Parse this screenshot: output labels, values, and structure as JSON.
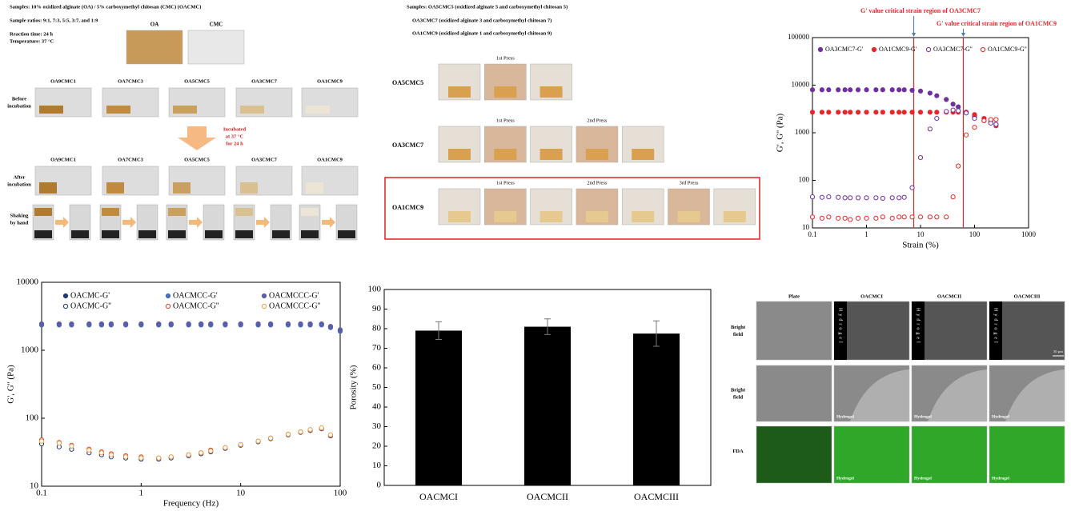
{
  "panel_a": {
    "lines": [
      "Samples: 10% oxidized alginate (OA) / 5% carboxymethyl chitosan (CMC) (OACMC)",
      "Sample ratios: 9:1, 7:3, 5:5, 3:7, and 1:9",
      "Reaction time: 24 h",
      "Temperature: 37 °C"
    ],
    "tubes": [
      "OA",
      "CMC"
    ],
    "samples": [
      "OA9CMC1",
      "OA7CMC3",
      "OA5CMC5",
      "OA3CMC7",
      "OA1CMC9"
    ],
    "samples_after": [
      "OA9CMC1",
      "OA7CMC3",
      "OA5CMC5",
      "OA3CMC7",
      "OA1CMC9"
    ],
    "row_labels": [
      [
        "Before",
        "incubation"
      ],
      [
        "After",
        "incubation"
      ],
      [
        "Shaking",
        "by hand"
      ]
    ],
    "incubation_note": [
      "Incubated",
      "at 37 °C",
      "for 24 h"
    ]
  },
  "panel_b": {
    "lines": [
      "Samples: OA5CMC5 (oxidized alginate 5 and carboxymethyl chitosan 5)",
      "OA3CMC7 (oxidized alginate 3 and carboxymethyl chitosan 7)",
      "OA1CMC9 (oxidized alginate 1 and carboxymethyl chitosan 9)"
    ],
    "rows": [
      {
        "label": "OA5CMC5",
        "presses": [
          "1st Press"
        ]
      },
      {
        "label": "OA3CMC7",
        "presses": [
          "1st Press",
          "2nd Press"
        ]
      },
      {
        "label": "OA1CMC9",
        "presses": [
          "1st Press",
          "2nd Press",
          "3rd Press"
        ]
      }
    ]
  },
  "panel_f": {
    "columns": [
      "Plate",
      "OACMCI",
      "OACMCII",
      "OACMCIII"
    ],
    "rows": [
      [
        "Bright",
        "field"
      ],
      [
        "Bright",
        "field"
      ],
      [
        "FDA"
      ]
    ],
    "hydrogel": "Hydrogel",
    "scale": "50 µm"
  },
  "chart_data": [
    {
      "type": "scatter",
      "xlabel": "Strain (%)",
      "ylabel": "G', G'' (Pa)",
      "xlog": true,
      "ylog": true,
      "xlim": [
        0.1,
        1000
      ],
      "ylim": [
        10,
        100000
      ],
      "xticks": [
        0.1,
        1,
        10,
        100,
        1000
      ],
      "yticks": [
        10,
        100,
        1000,
        10000,
        100000
      ],
      "x": [
        0.1,
        0.15,
        0.2,
        0.3,
        0.4,
        0.5,
        0.7,
        1,
        1.5,
        2,
        3,
        4,
        5,
        7,
        10,
        15,
        20,
        30,
        40,
        50,
        70,
        100,
        150,
        200,
        250
      ],
      "series": [
        {
          "name": "OA3CMC7-G'",
          "color": "#7030a0",
          "filled": true,
          "values": [
            8000,
            8000,
            8000,
            8000,
            8000,
            8000,
            8000,
            8000,
            8000,
            8000,
            8000,
            8000,
            8000,
            7800,
            7500,
            6800,
            6000,
            5000,
            4000,
            3500,
            2700,
            2200,
            1800,
            1600,
            1500
          ]
        },
        {
          "name": "OA1CMC9-G'",
          "color": "#e8262a",
          "filled": true,
          "values": [
            2700,
            2700,
            2700,
            2700,
            2700,
            2700,
            2700,
            2700,
            2700,
            2700,
            2700,
            2700,
            2700,
            2700,
            2700,
            2700,
            2700,
            2700,
            2700,
            2700,
            2700,
            2400,
            2000,
            1700,
            1400
          ]
        },
        {
          "name": "OA3CMC7-G''",
          "color": "#7030a0",
          "filled": false,
          "values": [
            45,
            44,
            45,
            44,
            43,
            43,
            43,
            43,
            43,
            42,
            43,
            43,
            44,
            70,
            300,
            1200,
            2000,
            2800,
            3000,
            2900,
            2600,
            2000,
            1800,
            1600,
            1500
          ]
        },
        {
          "name": "OA1CMC9-G''",
          "color": "#e8262a",
          "filled": false,
          "values": [
            17,
            16,
            17,
            16,
            16,
            15,
            16,
            16,
            16,
            17,
            16,
            17,
            17,
            17,
            17,
            17,
            17,
            17,
            45,
            200,
            900,
            1300,
            1800,
            1900,
            1900
          ]
        }
      ],
      "vlines": [
        {
          "x": 7.5,
          "label": "G' value critical strain region of OA3CMC7"
        },
        {
          "x": 62,
          "label": "G' value critical strain region of OA1CMC9"
        }
      ],
      "vline_color": "#e8262a"
    },
    {
      "type": "scatter",
      "xlabel": "Frequency (Hz)",
      "ylabel": "G', G'' (Pa)",
      "xlog": true,
      "ylog": true,
      "xlim": [
        0.1,
        100
      ],
      "ylim": [
        10,
        10000
      ],
      "xticks": [
        0.1,
        1,
        10,
        100
      ],
      "yticks": [
        10,
        100,
        1000,
        10000
      ],
      "x": [
        0.1,
        0.15,
        0.2,
        0.3,
        0.4,
        0.5,
        0.7,
        1,
        1.5,
        2,
        3,
        4,
        5,
        7,
        10,
        15,
        20,
        30,
        40,
        50,
        65,
        80,
        100
      ],
      "series": [
        {
          "name": "OACMC-G'",
          "color": "#1f3a6e",
          "filled": true,
          "values": [
            2400,
            2400,
            2400,
            2400,
            2400,
            2400,
            2400,
            2400,
            2400,
            2400,
            2400,
            2400,
            2400,
            2400,
            2400,
            2400,
            2400,
            2400,
            2400,
            2400,
            2400,
            2200,
            1950
          ]
        },
        {
          "name": "OACMC-G''",
          "color": "#1f3a6e",
          "filled": false,
          "values": [
            42,
            38,
            35,
            31,
            29,
            27,
            26,
            25,
            25,
            26,
            28,
            30,
            32,
            36,
            40,
            45,
            50,
            57,
            62,
            66,
            70,
            55,
            null
          ]
        },
        {
          "name": "OACMCC-G'",
          "color": "#4a6bbf",
          "filled": true,
          "values": [
            2350,
            2350,
            2350,
            2350,
            2350,
            2350,
            2350,
            2350,
            2350,
            2350,
            2350,
            2350,
            2350,
            2350,
            2350,
            2350,
            2350,
            2350,
            2350,
            2350,
            2350,
            2150,
            1900
          ]
        },
        {
          "name": "OACMCC-G''",
          "color": "#d9432b",
          "filled": false,
          "values": [
            48,
            44,
            40,
            35,
            32,
            30,
            28,
            27,
            26,
            27,
            29,
            31,
            34,
            37,
            41,
            46,
            51,
            58,
            63,
            67,
            71,
            56,
            null
          ]
        },
        {
          "name": "OACMCCC-G'",
          "color": "#5b5ea6",
          "filled": true,
          "values": [
            2450,
            2450,
            2450,
            2450,
            2450,
            2450,
            2450,
            2450,
            2450,
            2450,
            2450,
            2450,
            2450,
            2450,
            2450,
            2450,
            2450,
            2450,
            2450,
            2450,
            2450,
            2250,
            2000
          ]
        },
        {
          "name": "OACMCCC-G''",
          "color": "#f0a050",
          "filled": false,
          "values": [
            46,
            43,
            39,
            34,
            31,
            29,
            27,
            26,
            26,
            27,
            29,
            31,
            33,
            37,
            41,
            46,
            51,
            58,
            63,
            68,
            72,
            57,
            null
          ]
        }
      ]
    },
    {
      "type": "bar",
      "ylabel": "Porosity (%)",
      "categories": [
        "OACMCI",
        "OACMCII",
        "OACMCIII"
      ],
      "values": [
        79,
        81,
        77.5
      ],
      "errors": [
        4.5,
        4,
        6.5
      ],
      "color": "#000000",
      "ylim": [
        0,
        100
      ],
      "yticks": [
        0,
        10,
        20,
        30,
        40,
        50,
        60,
        70,
        80,
        90,
        100
      ]
    }
  ]
}
